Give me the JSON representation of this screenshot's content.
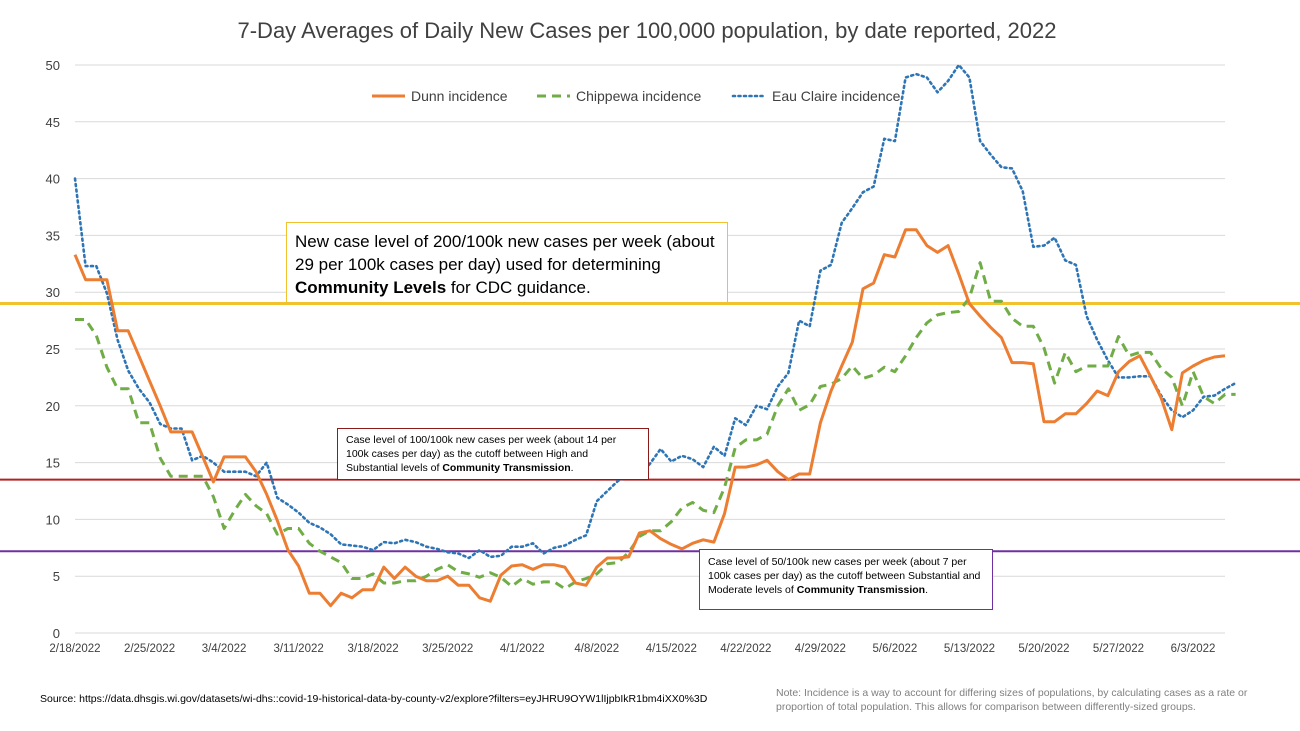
{
  "chart_data": {
    "type": "line",
    "title": "7-Day Averages of Daily New Cases per 100,000 population, by date reported, 2022",
    "xlabel": "",
    "ylabel": "",
    "ylim": [
      0,
      50
    ],
    "yticks": [
      0,
      5,
      10,
      15,
      20,
      25,
      30,
      35,
      40,
      45,
      50
    ],
    "x_start": "2/18/2022",
    "x_tick_labels": [
      "2/18/2022",
      "2/25/2022",
      "3/4/2022",
      "3/11/2022",
      "3/18/2022",
      "3/25/2022",
      "4/1/2022",
      "4/8/2022",
      "4/15/2022",
      "4/22/2022",
      "4/29/2022",
      "5/6/2022",
      "5/13/2022",
      "5/20/2022",
      "5/27/2022",
      "6/3/2022"
    ],
    "grid": "horizontal",
    "legend": "top-center",
    "series": [
      {
        "name": "Dunn incidence",
        "color": "#ed7d31",
        "style": "solid",
        "values": [
          33.3,
          31.1,
          31.1,
          31.1,
          26.6,
          26.6,
          24.4,
          22.2,
          20.0,
          17.7,
          17.7,
          17.7,
          15.5,
          13.3,
          15.5,
          15.5,
          15.5,
          14.2,
          12.2,
          9.9,
          7.3,
          5.9,
          3.5,
          3.5,
          2.4,
          3.5,
          3.1,
          3.8,
          3.8,
          5.8,
          4.8,
          5.8,
          5.0,
          4.6,
          4.6,
          5.0,
          4.2,
          4.2,
          3.1,
          2.8,
          5.1,
          5.9,
          6.0,
          5.6,
          6.0,
          6.0,
          5.8,
          4.4,
          4.2,
          5.8,
          6.6,
          6.6,
          6.7,
          8.8,
          9.0,
          8.3,
          7.8,
          7.4,
          7.9,
          8.2,
          8.0,
          10.5,
          14.6,
          14.6,
          14.8,
          15.2,
          14.2,
          13.5,
          14.0,
          14.0,
          18.5,
          21.3,
          23.5,
          25.6,
          30.3,
          30.8,
          33.3,
          33.1,
          35.5,
          35.5,
          34.1,
          33.5,
          34.1,
          31.6,
          29.0,
          27.9,
          26.9,
          26.0,
          23.8,
          23.8,
          23.7,
          18.6,
          18.6,
          19.3,
          19.3,
          20.2,
          21.3,
          20.9,
          23.0,
          23.9,
          24.4,
          22.6,
          20.7,
          17.9,
          22.9,
          23.5,
          24.0,
          24.3,
          24.4
        ]
      },
      {
        "name": "Chippewa incidence",
        "color": "#70ad47",
        "style": "dashed",
        "values": [
          27.6,
          27.6,
          26.2,
          23.4,
          21.5,
          21.5,
          18.5,
          18.5,
          15.4,
          13.8,
          13.8,
          13.8,
          13.8,
          12.0,
          9.2,
          10.8,
          12.2,
          11.2,
          10.5,
          8.7,
          9.2,
          9.2,
          7.9,
          7.2,
          6.7,
          6.2,
          4.8,
          4.8,
          5.2,
          4.4,
          4.4,
          4.6,
          4.6,
          5.0,
          5.6,
          6.0,
          5.4,
          5.2,
          4.9,
          5.3,
          4.9,
          4.1,
          4.8,
          4.3,
          4.5,
          4.5,
          3.9,
          4.5,
          4.8,
          5.2,
          6.1,
          6.2,
          7.1,
          8.5,
          9.0,
          9.0,
          9.8,
          11.0,
          11.5,
          10.8,
          10.6,
          12.8,
          16.3,
          17.0,
          17.0,
          17.5,
          20.0,
          21.5,
          19.6,
          20.1,
          21.7,
          21.9,
          22.4,
          23.5,
          22.4,
          22.7,
          23.4,
          23.0,
          24.4,
          26.0,
          27.3,
          28.0,
          28.2,
          28.3,
          29.5,
          32.6,
          29.2,
          29.2,
          27.7,
          27.0,
          27.0,
          25.1,
          22.0,
          24.7,
          23.0,
          23.5,
          23.5,
          23.5,
          26.1,
          24.4,
          24.7,
          24.7,
          23.3,
          22.5,
          20.0,
          23.0,
          20.8,
          20.2,
          21.0,
          21.0
        ]
      },
      {
        "name": "Eau Claire incidence",
        "color": "#2e75b6",
        "style": "dotted",
        "values": [
          40.0,
          32.3,
          32.3,
          29.9,
          25.8,
          23.1,
          21.5,
          20.3,
          18.4,
          18.0,
          18.0,
          15.2,
          15.6,
          15.0,
          14.2,
          14.2,
          14.2,
          13.8,
          15.0,
          11.9,
          11.3,
          10.6,
          9.7,
          9.3,
          8.7,
          7.8,
          7.7,
          7.6,
          7.3,
          8.0,
          7.9,
          8.2,
          8.0,
          7.6,
          7.4,
          7.1,
          7.0,
          6.6,
          7.3,
          6.7,
          6.8,
          7.6,
          7.6,
          7.9,
          7.0,
          7.5,
          7.7,
          8.2,
          8.6,
          11.6,
          12.5,
          13.4,
          13.8,
          13.8,
          14.9,
          16.2,
          15.1,
          15.6,
          15.3,
          14.6,
          16.4,
          15.6,
          18.9,
          18.3,
          20.0,
          19.7,
          21.7,
          22.9,
          27.5,
          27.0,
          31.9,
          32.4,
          36.1,
          37.4,
          38.8,
          39.3,
          43.5,
          43.3,
          48.9,
          49.2,
          48.9,
          47.6,
          48.6,
          50.0,
          48.9,
          43.3,
          42.1,
          41.0,
          40.9,
          38.9,
          34.0,
          34.1,
          34.8,
          32.8,
          32.4,
          27.9,
          25.8,
          24.0,
          22.5,
          22.5,
          22.6,
          22.6,
          20.9,
          19.6,
          19.0,
          19.6,
          20.8,
          20.9,
          21.5,
          22.0
        ]
      }
    ],
    "reference_lines": [
      {
        "value": 29,
        "color": "#f2c12e"
      },
      {
        "value": 13.5,
        "color": "#b22222"
      },
      {
        "value": 7.2,
        "color": "#7030a0"
      }
    ]
  },
  "annotations": {
    "cdc": {
      "pre": "New case level of 200/100k new cases per week (about 29 per 100k cases per day) used for determining ",
      "bold": "Community Levels",
      "post": " for CDC guidance."
    },
    "high": {
      "pre": "Case level of 100/100k new cases per week (about 14 per 100k cases per day) as the cutoff between High and Substantial levels of ",
      "bold": "Community Transmission",
      "post": "."
    },
    "moderate": {
      "pre": "Case level of 50/100k new cases per week (about 7 per 100k cases per day) as the cutoff between Substantial and Moderate levels of ",
      "bold": "Community Transmission",
      "post": "."
    }
  },
  "footer": {
    "source": "Source: https://data.dhsgis.wi.gov/datasets/wi-dhs::covid-19-historical-data-by-county-v2/explore?filters=eyJHRU9OYW1lIjpbIkR1bm4iXX0%3D",
    "note": "Note:  Incidence is a way to account for differing sizes of populations, by calculating cases as a rate or proportion of total population.  This allows for comparison between differently-sized groups."
  }
}
